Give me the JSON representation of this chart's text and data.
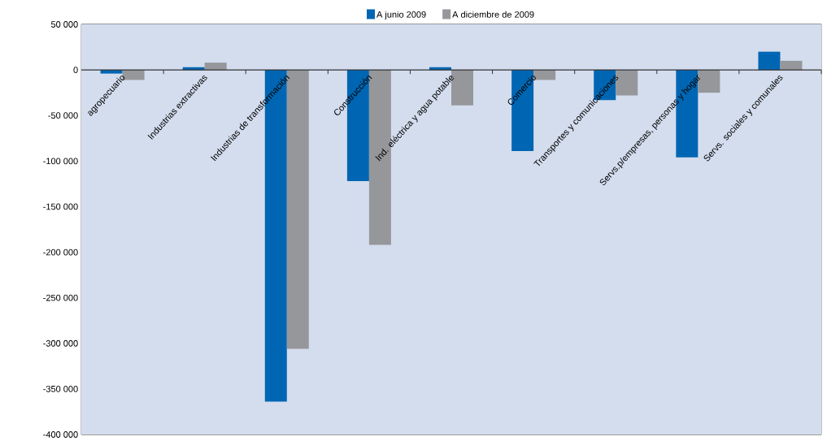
{
  "chart_data": {
    "type": "bar",
    "categories": [
      "agropecuario",
      "Industrias extractivas",
      "Industrias de transformación",
      "Construcción",
      "Ind. eléctrica y agua potable",
      "Comercio",
      "Transportes y comunicaciones",
      "Servs.p/empresas, personas y hogar",
      "Servs. sociales y comunales"
    ],
    "series": [
      {
        "name": "A junio 2009",
        "color": "#0066b3",
        "values": [
          -4000,
          3000,
          -364000,
          -122000,
          3000,
          -89000,
          -33000,
          -96000,
          20000
        ]
      },
      {
        "name": "A diciembre de 2009",
        "color": "#96979a",
        "values": [
          -11000,
          8000,
          -306000,
          -192000,
          -39000,
          -11000,
          -28000,
          -25000,
          10000
        ]
      }
    ],
    "ylim": [
      -400000,
      50000
    ],
    "yticks": [
      {
        "value": -400000,
        "label": "-400 000"
      },
      {
        "value": -350000,
        "label": "-350 000"
      },
      {
        "value": -300000,
        "label": "-300 000"
      },
      {
        "value": -250000,
        "label": "-250 000"
      },
      {
        "value": -200000,
        "label": "-200 000"
      },
      {
        "value": -150000,
        "label": "-150 000"
      },
      {
        "value": -100000,
        "label": "-100 000"
      },
      {
        "value": -50000,
        "label": "-50 000"
      },
      {
        "value": 0,
        "label": "0"
      },
      {
        "value": 50000,
        "label": "50 000"
      }
    ],
    "grid": "y",
    "legend": "top"
  }
}
